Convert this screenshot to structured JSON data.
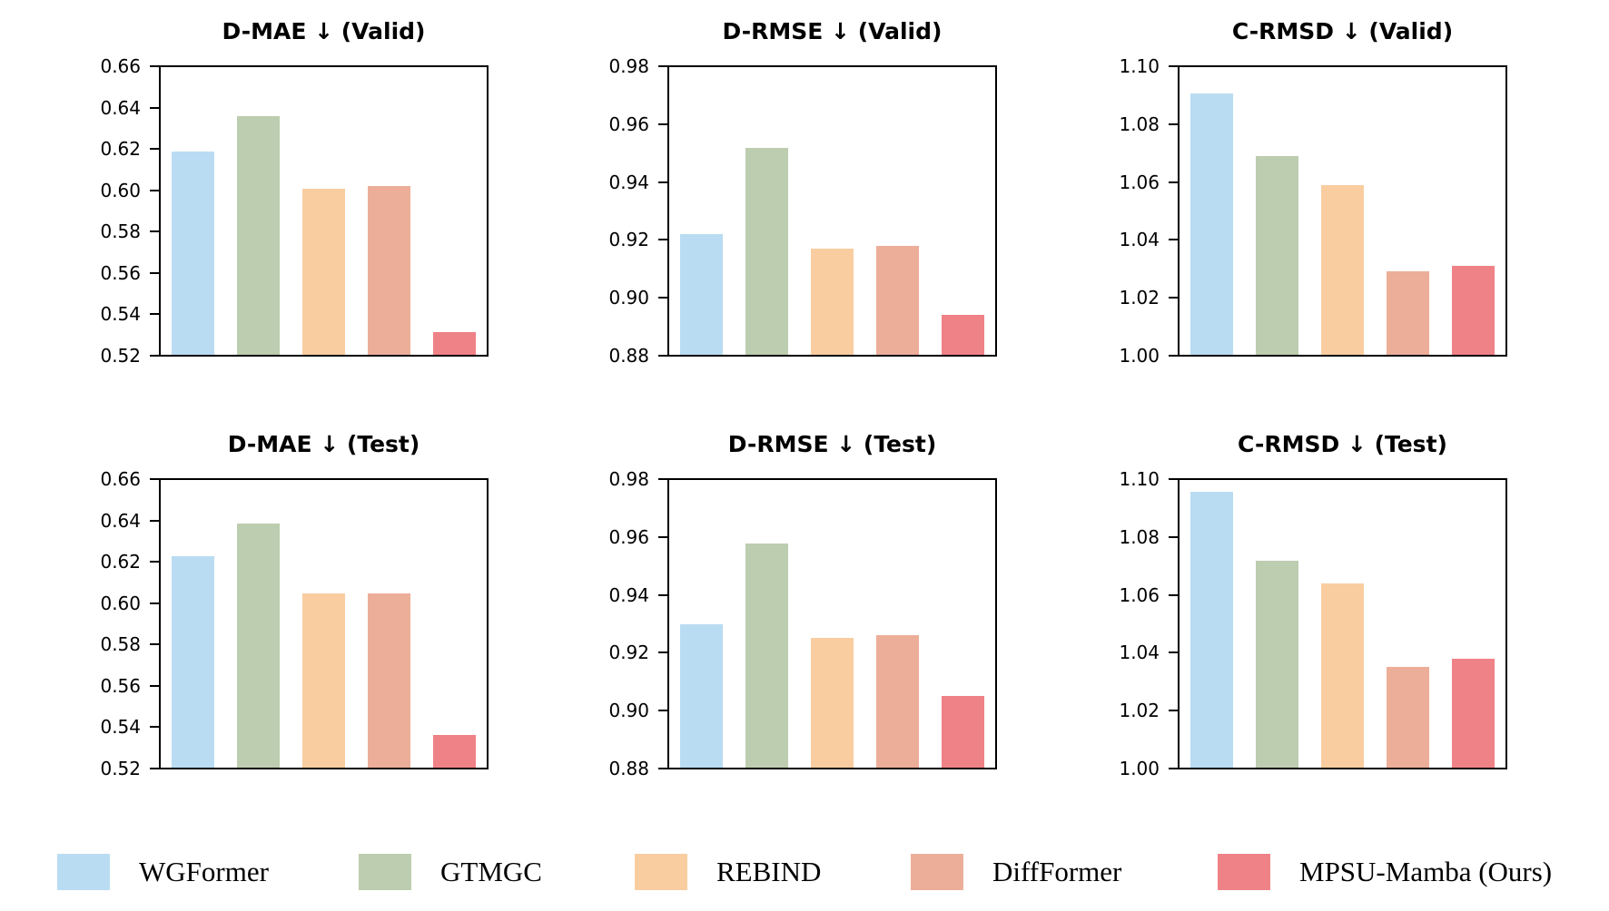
{
  "methods": [
    {
      "name": "WGFormer",
      "color": "#B9DCF2"
    },
    {
      "name": "GTMGC",
      "color": "#BDCDAF"
    },
    {
      "name": "REBIND",
      "color": "#F9CDA0"
    },
    {
      "name": "DiffFormer",
      "color": "#EDAE99"
    },
    {
      "name": "MPSU-Mamba (Ours)",
      "color": "#EF8287"
    }
  ],
  "chart_data": [
    {
      "type": "bar",
      "title": "D-MAE ↓ (Valid)",
      "categories": [
        "WGFormer",
        "GTMGC",
        "REBIND",
        "DiffFormer",
        "MPSU-Mamba (Ours)"
      ],
      "values": [
        0.619,
        0.636,
        0.601,
        0.602,
        0.531
      ],
      "xlabel": "",
      "ylabel": "",
      "ylim": [
        0.52,
        0.66
      ],
      "ytick_step": 0.02,
      "grid": false,
      "legend_position": "shared-bottom"
    },
    {
      "type": "bar",
      "title": "D-RMSE ↓ (Valid)",
      "categories": [
        "WGFormer",
        "GTMGC",
        "REBIND",
        "DiffFormer",
        "MPSU-Mamba (Ours)"
      ],
      "values": [
        0.922,
        0.952,
        0.917,
        0.918,
        0.894
      ],
      "xlabel": "",
      "ylabel": "",
      "ylim": [
        0.88,
        0.98
      ],
      "ytick_step": 0.02,
      "grid": false,
      "legend_position": "shared-bottom"
    },
    {
      "type": "bar",
      "title": "C-RMSD ↓ (Valid)",
      "categories": [
        "WGFormer",
        "GTMGC",
        "REBIND",
        "DiffFormer",
        "MPSU-Mamba (Ours)"
      ],
      "values": [
        1.091,
        1.069,
        1.059,
        1.029,
        1.031
      ],
      "xlabel": "",
      "ylabel": "",
      "ylim": [
        1.0,
        1.1
      ],
      "ytick_step": 0.02,
      "grid": false,
      "legend_position": "shared-bottom"
    },
    {
      "type": "bar",
      "title": "D-MAE ↓ (Test)",
      "categories": [
        "WGFormer",
        "GTMGC",
        "REBIND",
        "DiffFormer",
        "MPSU-Mamba (Ours)"
      ],
      "values": [
        0.623,
        0.639,
        0.605,
        0.605,
        0.536
      ],
      "xlabel": "",
      "ylabel": "",
      "ylim": [
        0.52,
        0.66
      ],
      "ytick_step": 0.02,
      "grid": false,
      "legend_position": "shared-bottom"
    },
    {
      "type": "bar",
      "title": "D-RMSE ↓ (Test)",
      "categories": [
        "WGFormer",
        "GTMGC",
        "REBIND",
        "DiffFormer",
        "MPSU-Mamba (Ours)"
      ],
      "values": [
        0.93,
        0.958,
        0.925,
        0.926,
        0.905
      ],
      "xlabel": "",
      "ylabel": "",
      "ylim": [
        0.88,
        0.98
      ],
      "ytick_step": 0.02,
      "grid": false,
      "legend_position": "shared-bottom"
    },
    {
      "type": "bar",
      "title": "C-RMSD ↓ (Test)",
      "categories": [
        "WGFormer",
        "GTMGC",
        "REBIND",
        "DiffFormer",
        "MPSU-Mamba (Ours)"
      ],
      "values": [
        1.096,
        1.072,
        1.064,
        1.035,
        1.038
      ],
      "xlabel": "",
      "ylabel": "",
      "ylim": [
        1.0,
        1.1
      ],
      "ytick_step": 0.02,
      "grid": false,
      "legend_position": "shared-bottom"
    }
  ],
  "legend": {
    "entries": [
      "WGFormer",
      "GTMGC",
      "REBIND",
      "DiffFormer",
      "MPSU-Mamba (Ours)"
    ]
  }
}
